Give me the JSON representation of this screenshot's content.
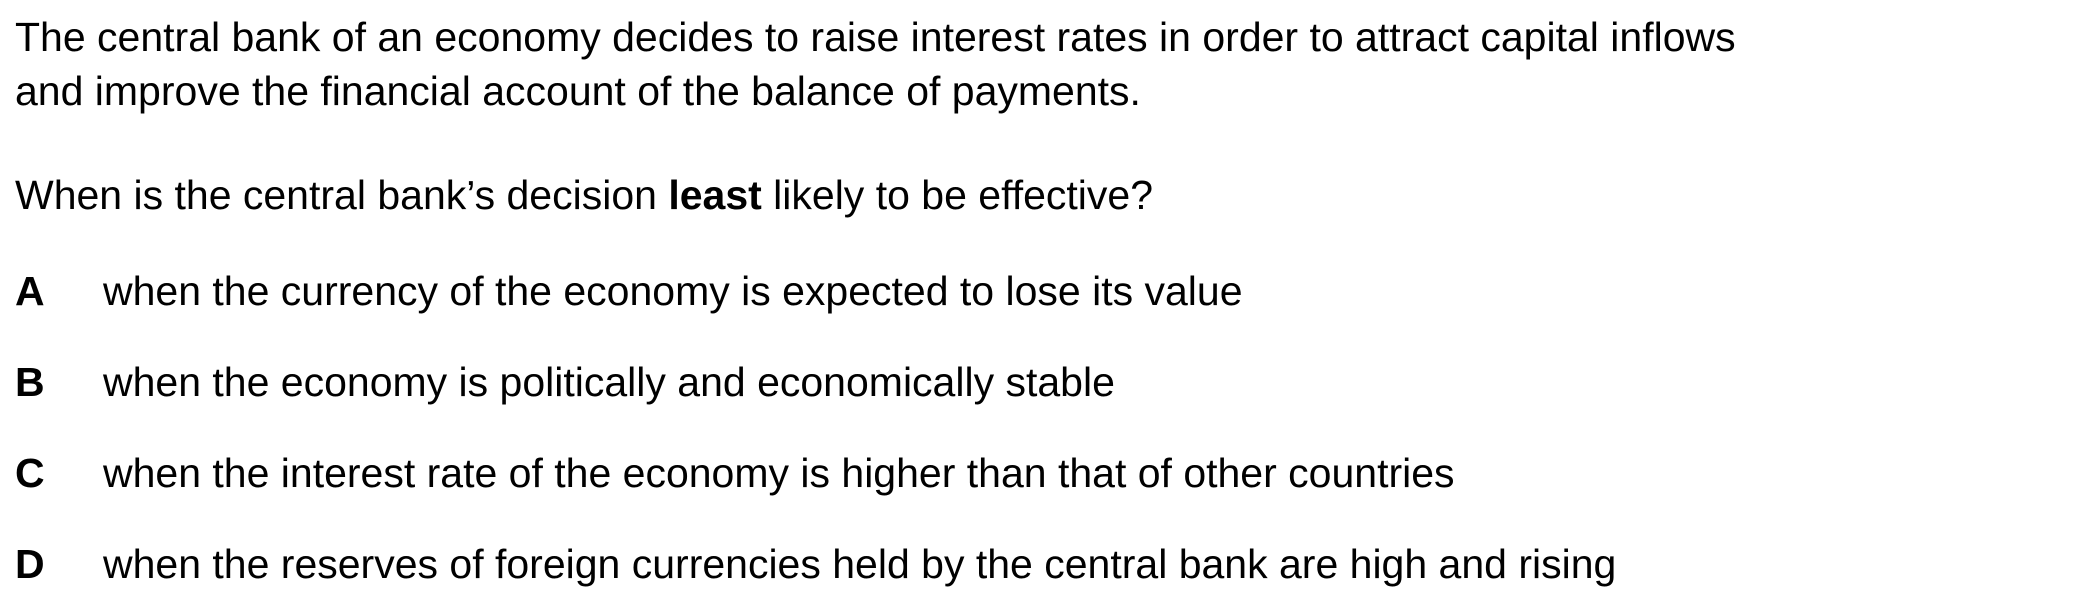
{
  "stem": {
    "line1": "The central bank of an economy decides to raise interest rates in order to attract capital inflows",
    "line2": "and improve the financial account of the balance of payments."
  },
  "question": {
    "before": "When is the central bank’s decision ",
    "emphasis": "least",
    "after": " likely to be effective?"
  },
  "options": [
    {
      "letter": "A",
      "text": "when the currency of the economy is expected to lose its value"
    },
    {
      "letter": "B",
      "text": "when the economy is politically and economically stable"
    },
    {
      "letter": "C",
      "text": "when the interest rate of the economy is higher than that of other countries"
    },
    {
      "letter": "D",
      "text": "when the reserves of foreign currencies held by the central bank are high and rising"
    }
  ]
}
